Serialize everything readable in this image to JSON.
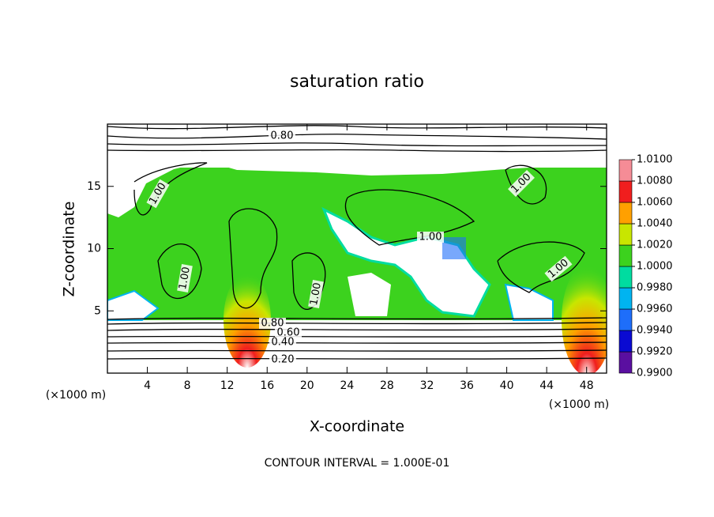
{
  "chart_data": {
    "type": "contour",
    "title": "saturation ratio",
    "x_label": "X-coordinate",
    "y_label": "Z-coordinate",
    "y_unit_label": "(×1000 m)",
    "x_unit_label": "(×1000 m)",
    "footer": "CONTOUR INTERVAL = 1.000E-01",
    "xlim": [
      0,
      50
    ],
    "ylim": [
      0,
      20
    ],
    "xticks": [
      4,
      8,
      12,
      16,
      20,
      24,
      28,
      32,
      36,
      40,
      44,
      48
    ],
    "yticks": [
      5,
      10,
      15
    ],
    "colorbar": {
      "ticks": [
        {
          "value": 0.99,
          "label": "0.9900"
        },
        {
          "value": 0.992,
          "label": "0.9920"
        },
        {
          "value": 0.994,
          "label": "0.9940"
        },
        {
          "value": 0.996,
          "label": "0.9960"
        },
        {
          "value": 0.998,
          "label": "0.9980"
        },
        {
          "value": 1.0,
          "label": "1.0000"
        },
        {
          "value": 1.002,
          "label": "1.0020"
        },
        {
          "value": 1.004,
          "label": "1.0040"
        },
        {
          "value": 1.006,
          "label": "1.0060"
        },
        {
          "value": 1.008,
          "label": "1.0080"
        },
        {
          "value": 1.01,
          "label": "1.0100"
        }
      ],
      "colors": [
        "#5a0fa0",
        "#0a0ad2",
        "#1e6efa",
        "#00b4f0",
        "#00dca0",
        "#3cd21e",
        "#c8e600",
        "#ffa000",
        "#f01e1e",
        "#f58c96"
      ]
    },
    "contour_labels": [
      {
        "value": 0.8,
        "label": "0.80"
      },
      {
        "value": 1.0,
        "label": "1.00"
      },
      {
        "value": 1.0,
        "label": "1.00"
      },
      {
        "value": 1.0,
        "label": "1.00"
      },
      {
        "value": 1.0,
        "label": "1.00"
      },
      {
        "value": 1.0,
        "label": "1.00"
      },
      {
        "value": 1.0,
        "label": "1.00"
      },
      {
        "value": 0.8,
        "label": "0.80"
      },
      {
        "value": 0.6,
        "label": "0.60"
      },
      {
        "value": 0.4,
        "label": "0.40"
      },
      {
        "value": 0.2,
        "label": "0.20"
      }
    ]
  }
}
